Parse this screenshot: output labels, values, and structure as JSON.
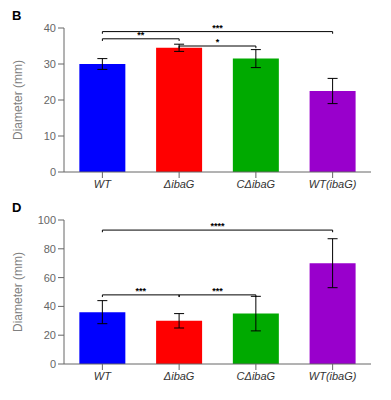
{
  "chart_data": [
    {
      "type": "bar",
      "title": "B",
      "categories": [
        "WT",
        "ΔibaG",
        "CΔibaG",
        "WT(ibaG)"
      ],
      "values": [
        30.0,
        34.5,
        31.5,
        22.5
      ],
      "errors": [
        1.5,
        1.0,
        2.5,
        3.5
      ],
      "colors": [
        "#0000ff",
        "#ff0000",
        "#00aa00",
        "#9900cc"
      ],
      "ylabel": "Diameter (mm)",
      "ylim": [
        0,
        40
      ],
      "yticks": [
        0,
        10,
        20,
        30,
        40
      ],
      "grid": false,
      "annotations": [
        {
          "from": "WT",
          "to": "ΔibaG",
          "y": 37.0,
          "label": "**"
        },
        {
          "from": "ΔibaG",
          "to": "CΔibaG",
          "y": 35.0,
          "label": "*"
        },
        {
          "from": "WT",
          "to": "WT(ibaG)",
          "y": 39.0,
          "label": "***"
        }
      ]
    },
    {
      "type": "bar",
      "title": "D",
      "categories": [
        "WT",
        "ΔibaG",
        "CΔibaG",
        "WT(ibaG)"
      ],
      "values": [
        36.0,
        30.0,
        35.0,
        70.0
      ],
      "errors": [
        8.0,
        5.0,
        12.0,
        17.0
      ],
      "colors": [
        "#0000ff",
        "#ff0000",
        "#00aa00",
        "#9900cc"
      ],
      "ylabel": "Diameter (mm)",
      "ylim": [
        0,
        100
      ],
      "yticks": [
        0,
        20,
        40,
        60,
        80,
        100
      ],
      "grid": false,
      "annotations": [
        {
          "from": "WT",
          "to": "ΔibaG",
          "y": 48,
          "label": "***"
        },
        {
          "from": "ΔibaG",
          "to": "CΔibaG",
          "y": 48,
          "label": "***"
        },
        {
          "from": "WT",
          "to": "WT(ibaG)",
          "y": 93,
          "label": "****"
        }
      ]
    }
  ]
}
